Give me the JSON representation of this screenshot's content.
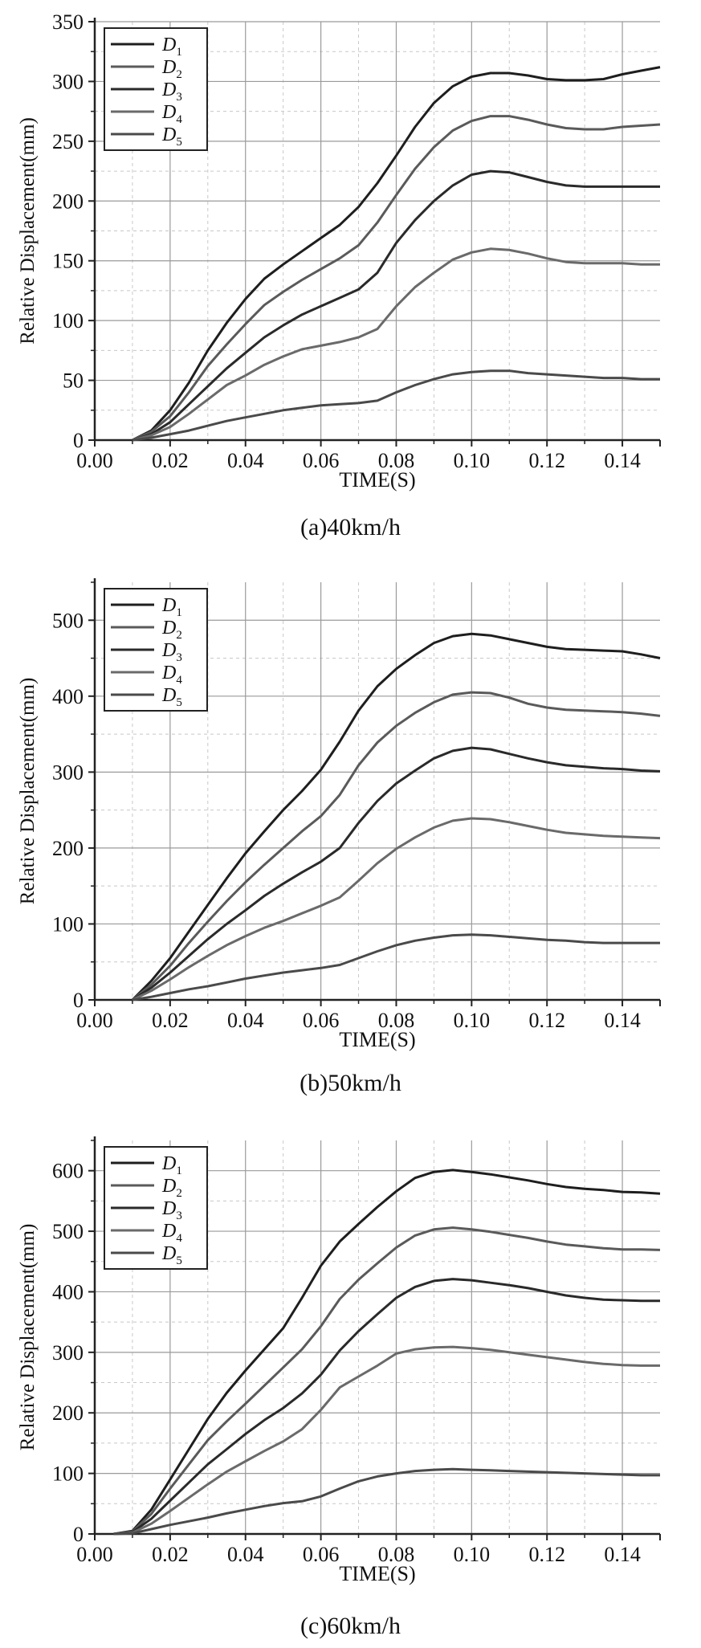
{
  "chart_data": [
    {
      "type": "line",
      "caption": "(a)40km/h",
      "xlabel": "TIME(S)",
      "ylabel": "Relative Displacement(mm)",
      "xlim": [
        0,
        0.15
      ],
      "ylim": [
        0,
        350
      ],
      "xticks": [
        "0.00",
        "0.02",
        "0.04",
        "0.06",
        "0.08",
        "0.10",
        "0.12",
        "0.14"
      ],
      "yticks": [
        "0",
        "50",
        "100",
        "150",
        "200",
        "250",
        "300",
        "350"
      ],
      "grid": true,
      "legend_position": "top-left",
      "series": [
        {
          "name": "D",
          "sub": "1",
          "color": "#1e1e1e",
          "x": [
            0.01,
            0.015,
            0.02,
            0.025,
            0.03,
            0.035,
            0.04,
            0.045,
            0.05,
            0.055,
            0.06,
            0.065,
            0.07,
            0.075,
            0.08,
            0.085,
            0.09,
            0.095,
            0.1,
            0.105,
            0.11,
            0.115,
            0.12,
            0.125,
            0.13,
            0.135,
            0.14,
            0.145,
            0.15
          ],
          "y": [
            0,
            8,
            25,
            48,
            75,
            98,
            118,
            135,
            147,
            158,
            169,
            180,
            195,
            215,
            238,
            262,
            282,
            296,
            304,
            307,
            307,
            305,
            302,
            301,
            301,
            302,
            306,
            309,
            312
          ]
        },
        {
          "name": "D",
          "sub": "2",
          "color": "#5a5a5a",
          "x": [
            0.01,
            0.015,
            0.02,
            0.025,
            0.03,
            0.035,
            0.04,
            0.045,
            0.05,
            0.055,
            0.06,
            0.065,
            0.07,
            0.075,
            0.08,
            0.085,
            0.09,
            0.095,
            0.1,
            0.105,
            0.11,
            0.115,
            0.12,
            0.125,
            0.13,
            0.135,
            0.14,
            0.145,
            0.15
          ],
          "y": [
            0,
            7,
            20,
            40,
            62,
            80,
            97,
            113,
            124,
            134,
            143,
            152,
            163,
            182,
            205,
            227,
            245,
            259,
            267,
            271,
            271,
            268,
            264,
            261,
            260,
            260,
            262,
            263,
            264
          ]
        },
        {
          "name": "D",
          "sub": "3",
          "color": "#2a2a2a",
          "x": [
            0.01,
            0.015,
            0.02,
            0.025,
            0.03,
            0.035,
            0.04,
            0.045,
            0.05,
            0.055,
            0.06,
            0.065,
            0.07,
            0.075,
            0.08,
            0.085,
            0.09,
            0.095,
            0.1,
            0.105,
            0.11,
            0.115,
            0.12,
            0.125,
            0.13,
            0.135,
            0.14,
            0.145,
            0.15
          ],
          "y": [
            0,
            5,
            15,
            30,
            45,
            60,
            73,
            86,
            96,
            105,
            112,
            119,
            126,
            140,
            165,
            184,
            200,
            213,
            222,
            225,
            224,
            220,
            216,
            213,
            212,
            212,
            212,
            212,
            212
          ]
        },
        {
          "name": "D",
          "sub": "4",
          "color": "#6a6a6a",
          "x": [
            0.01,
            0.015,
            0.02,
            0.025,
            0.03,
            0.035,
            0.04,
            0.045,
            0.05,
            0.055,
            0.06,
            0.065,
            0.07,
            0.075,
            0.08,
            0.085,
            0.09,
            0.095,
            0.1,
            0.105,
            0.11,
            0.115,
            0.12,
            0.125,
            0.13,
            0.135,
            0.14,
            0.145,
            0.15
          ],
          "y": [
            0,
            4,
            11,
            22,
            34,
            46,
            54,
            63,
            70,
            76,
            79,
            82,
            86,
            93,
            112,
            128,
            140,
            151,
            157,
            160,
            159,
            156,
            152,
            149,
            148,
            148,
            148,
            147,
            147
          ]
        },
        {
          "name": "D",
          "sub": "5",
          "color": "#4a4a4a",
          "x": [
            0.01,
            0.015,
            0.02,
            0.025,
            0.03,
            0.035,
            0.04,
            0.045,
            0.05,
            0.055,
            0.06,
            0.065,
            0.07,
            0.075,
            0.08,
            0.085,
            0.09,
            0.095,
            0.1,
            0.105,
            0.11,
            0.115,
            0.12,
            0.125,
            0.13,
            0.135,
            0.14,
            0.145,
            0.15
          ],
          "y": [
            0,
            2,
            5,
            8,
            12,
            16,
            19,
            22,
            25,
            27,
            29,
            30,
            31,
            33,
            40,
            46,
            51,
            55,
            57,
            58,
            58,
            56,
            55,
            54,
            53,
            52,
            52,
            51,
            51
          ]
        }
      ]
    },
    {
      "type": "line",
      "caption": "(b)50km/h",
      "xlabel": "TIME(S)",
      "ylabel": "Relative Displacement(mm)",
      "xlim": [
        0,
        0.15
      ],
      "ylim": [
        0,
        550
      ],
      "xticks": [
        "0.00",
        "0.02",
        "0.04",
        "0.06",
        "0.08",
        "0.10",
        "0.12",
        "0.14"
      ],
      "yticks": [
        "0",
        "100",
        "200",
        "300",
        "400",
        "500"
      ],
      "grid": true,
      "legend_position": "top-left",
      "series": [
        {
          "name": "D",
          "sub": "1",
          "color": "#1e1e1e",
          "x": [
            0.01,
            0.015,
            0.02,
            0.025,
            0.03,
            0.035,
            0.04,
            0.045,
            0.05,
            0.055,
            0.06,
            0.065,
            0.07,
            0.075,
            0.08,
            0.085,
            0.09,
            0.095,
            0.1,
            0.105,
            0.11,
            0.115,
            0.12,
            0.125,
            0.13,
            0.135,
            0.14,
            0.145,
            0.15
          ],
          "y": [
            0,
            25,
            55,
            90,
            125,
            160,
            193,
            222,
            250,
            275,
            303,
            340,
            381,
            413,
            436,
            454,
            470,
            479,
            482,
            480,
            475,
            470,
            465,
            462,
            461,
            460,
            459,
            455,
            450
          ]
        },
        {
          "name": "D",
          "sub": "2",
          "color": "#5a5a5a",
          "x": [
            0.01,
            0.015,
            0.02,
            0.025,
            0.03,
            0.035,
            0.04,
            0.045,
            0.05,
            0.055,
            0.06,
            0.065,
            0.07,
            0.075,
            0.08,
            0.085,
            0.09,
            0.095,
            0.1,
            0.105,
            0.11,
            0.115,
            0.12,
            0.125,
            0.13,
            0.135,
            0.14,
            0.145,
            0.15
          ],
          "y": [
            0,
            20,
            45,
            75,
            103,
            130,
            155,
            178,
            200,
            222,
            242,
            270,
            309,
            339,
            361,
            378,
            392,
            402,
            405,
            404,
            398,
            390,
            385,
            382,
            381,
            380,
            379,
            377,
            374
          ]
        },
        {
          "name": "D",
          "sub": "3",
          "color": "#2a2a2a",
          "x": [
            0.01,
            0.015,
            0.02,
            0.025,
            0.03,
            0.035,
            0.04,
            0.045,
            0.05,
            0.055,
            0.06,
            0.065,
            0.07,
            0.075,
            0.08,
            0.085,
            0.09,
            0.095,
            0.1,
            0.105,
            0.11,
            0.115,
            0.12,
            0.125,
            0.13,
            0.135,
            0.14,
            0.145,
            0.15
          ],
          "y": [
            0,
            16,
            36,
            58,
            80,
            100,
            118,
            137,
            153,
            168,
            182,
            200,
            233,
            262,
            285,
            302,
            318,
            328,
            332,
            330,
            324,
            318,
            313,
            309,
            307,
            305,
            304,
            302,
            301
          ]
        },
        {
          "name": "D",
          "sub": "4",
          "color": "#6a6a6a",
          "x": [
            0.01,
            0.015,
            0.02,
            0.025,
            0.03,
            0.035,
            0.04,
            0.045,
            0.05,
            0.055,
            0.06,
            0.065,
            0.07,
            0.075,
            0.08,
            0.085,
            0.09,
            0.095,
            0.1,
            0.105,
            0.11,
            0.115,
            0.12,
            0.125,
            0.13,
            0.135,
            0.14,
            0.145,
            0.15
          ],
          "y": [
            0,
            12,
            27,
            43,
            58,
            72,
            84,
            95,
            104,
            114,
            124,
            135,
            157,
            180,
            199,
            214,
            227,
            236,
            239,
            238,
            234,
            229,
            224,
            220,
            218,
            216,
            215,
            214,
            213
          ]
        },
        {
          "name": "D",
          "sub": "5",
          "color": "#4a4a4a",
          "x": [
            0.01,
            0.015,
            0.02,
            0.025,
            0.03,
            0.035,
            0.04,
            0.045,
            0.05,
            0.055,
            0.06,
            0.065,
            0.07,
            0.075,
            0.08,
            0.085,
            0.09,
            0.095,
            0.1,
            0.105,
            0.11,
            0.115,
            0.12,
            0.125,
            0.13,
            0.135,
            0.14,
            0.145,
            0.15
          ],
          "y": [
            0,
            4,
            9,
            14,
            18,
            23,
            28,
            32,
            36,
            39,
            42,
            46,
            55,
            64,
            72,
            78,
            82,
            85,
            86,
            85,
            83,
            81,
            79,
            78,
            76,
            75,
            75,
            75,
            75
          ]
        }
      ]
    },
    {
      "type": "line",
      "caption": "(c)60km/h",
      "xlabel": "TIME(S)",
      "ylabel": "Relative Displacement(mm)",
      "xlim": [
        0,
        0.15
      ],
      "ylim": [
        0,
        650
      ],
      "xticks": [
        "0.00",
        "0.02",
        "0.04",
        "0.06",
        "0.08",
        "0.10",
        "0.12",
        "0.14"
      ],
      "yticks": [
        "0",
        "100",
        "200",
        "300",
        "400",
        "500",
        "600"
      ],
      "grid": true,
      "legend_position": "top-left",
      "series": [
        {
          "name": "D",
          "sub": "1",
          "color": "#1e1e1e",
          "x": [
            0.005,
            0.01,
            0.015,
            0.02,
            0.025,
            0.03,
            0.035,
            0.04,
            0.045,
            0.05,
            0.055,
            0.06,
            0.065,
            0.07,
            0.075,
            0.08,
            0.085,
            0.09,
            0.095,
            0.1,
            0.105,
            0.11,
            0.115,
            0.12,
            0.125,
            0.13,
            0.135,
            0.14,
            0.145,
            0.15
          ],
          "y": [
            0,
            5,
            40,
            90,
            140,
            190,
            233,
            270,
            305,
            340,
            390,
            443,
            483,
            512,
            540,
            566,
            588,
            598,
            601,
            598,
            594,
            589,
            584,
            578,
            573,
            570,
            568,
            565,
            564,
            562
          ]
        },
        {
          "name": "D",
          "sub": "2",
          "color": "#5a5a5a",
          "x": [
            0.005,
            0.01,
            0.015,
            0.02,
            0.025,
            0.03,
            0.035,
            0.04,
            0.045,
            0.05,
            0.055,
            0.06,
            0.065,
            0.07,
            0.075,
            0.08,
            0.085,
            0.09,
            0.095,
            0.1,
            0.105,
            0.11,
            0.115,
            0.12,
            0.125,
            0.13,
            0.135,
            0.14,
            0.145,
            0.15
          ],
          "y": [
            0,
            4,
            33,
            75,
            115,
            155,
            186,
            215,
            245,
            275,
            305,
            343,
            388,
            420,
            447,
            473,
            493,
            503,
            506,
            503,
            499,
            494,
            489,
            483,
            478,
            475,
            472,
            470,
            470,
            469
          ]
        },
        {
          "name": "D",
          "sub": "3",
          "color": "#2a2a2a",
          "x": [
            0.005,
            0.01,
            0.015,
            0.02,
            0.025,
            0.03,
            0.035,
            0.04,
            0.045,
            0.05,
            0.055,
            0.06,
            0.065,
            0.07,
            0.075,
            0.08,
            0.085,
            0.09,
            0.095,
            0.1,
            0.105,
            0.11,
            0.115,
            0.12,
            0.125,
            0.13,
            0.135,
            0.14,
            0.145,
            0.15
          ],
          "y": [
            0,
            3,
            25,
            55,
            85,
            115,
            140,
            165,
            188,
            208,
            232,
            263,
            303,
            335,
            363,
            390,
            408,
            418,
            421,
            419,
            415,
            411,
            406,
            400,
            394,
            390,
            387,
            386,
            385,
            385
          ]
        },
        {
          "name": "D",
          "sub": "4",
          "color": "#6a6a6a",
          "x": [
            0.005,
            0.01,
            0.015,
            0.02,
            0.025,
            0.03,
            0.035,
            0.04,
            0.045,
            0.05,
            0.055,
            0.06,
            0.065,
            0.07,
            0.075,
            0.08,
            0.085,
            0.09,
            0.095,
            0.1,
            0.105,
            0.11,
            0.115,
            0.12,
            0.125,
            0.13,
            0.135,
            0.14,
            0.145,
            0.15
          ],
          "y": [
            0,
            2,
            17,
            38,
            60,
            82,
            103,
            120,
            137,
            153,
            173,
            205,
            242,
            260,
            278,
            298,
            305,
            308,
            309,
            307,
            304,
            300,
            296,
            292,
            288,
            284,
            281,
            279,
            278,
            278
          ]
        },
        {
          "name": "D",
          "sub": "5",
          "color": "#4a4a4a",
          "x": [
            0.005,
            0.01,
            0.015,
            0.02,
            0.025,
            0.03,
            0.035,
            0.04,
            0.045,
            0.05,
            0.055,
            0.06,
            0.065,
            0.07,
            0.075,
            0.08,
            0.085,
            0.09,
            0.095,
            0.1,
            0.105,
            0.11,
            0.115,
            0.12,
            0.125,
            0.13,
            0.135,
            0.14,
            0.145,
            0.15
          ],
          "y": [
            0,
            1,
            8,
            15,
            21,
            27,
            34,
            40,
            46,
            51,
            54,
            62,
            75,
            87,
            95,
            100,
            104,
            106,
            107,
            106,
            105,
            104,
            103,
            102,
            101,
            100,
            99,
            98,
            97,
            97
          ]
        }
      ]
    }
  ]
}
